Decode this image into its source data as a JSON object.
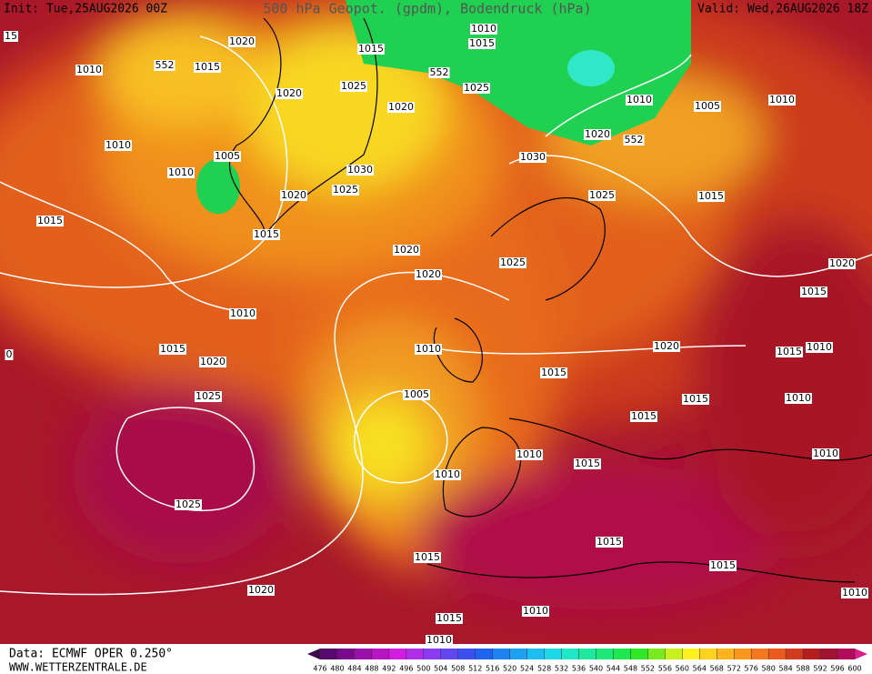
{
  "header": {
    "init": "Init: Tue,25AUG2026 00Z",
    "title": "500 hPa Geopot. (gpdm), Bodendruck (hPa)",
    "valid": "Valid: Wed,26AUG2026 18Z"
  },
  "isobar_labels": [
    "1020",
    "552",
    "1015",
    "1010",
    "1015",
    "1010",
    "1015",
    "552",
    "1025",
    "1025",
    "1020",
    "1020",
    "1010",
    "1005",
    "1010",
    "1010",
    "1005",
    "1010",
    "1030",
    "1020",
    "552",
    "1030",
    "1025",
    "1020",
    "1025",
    "1015",
    "1015",
    "1015",
    "1020",
    "1025",
    "1020",
    "1020",
    "1015",
    "1010",
    "1015",
    "1020",
    "1010",
    "1020",
    "1015",
    "1010",
    "1015",
    "1025",
    "1005",
    "1015",
    "1010",
    "1015",
    "1010",
    "1010",
    "1015",
    "1010",
    "1025",
    "1015",
    "1015",
    "1015",
    "1020",
    "1010",
    "1015",
    "1010",
    "1010",
    "15",
    "0"
  ],
  "colorbar": {
    "ticks": [
      476,
      480,
      484,
      488,
      492,
      496,
      500,
      504,
      508,
      512,
      516,
      520,
      524,
      528,
      532,
      536,
      540,
      544,
      548,
      552,
      556,
      560,
      564,
      568,
      572,
      576,
      580,
      584,
      588,
      592,
      596,
      600
    ],
    "colors": [
      "#3c0a4a",
      "#5a0a6e",
      "#7a0a8c",
      "#9a10a8",
      "#b814c4",
      "#d21ee0",
      "#b02ee8",
      "#8c3cf0",
      "#6446f0",
      "#3c50f0",
      "#1e64f0",
      "#1e82f0",
      "#1ea0f0",
      "#1ebef0",
      "#1ed8e8",
      "#1ee8c8",
      "#1ee8a0",
      "#1ee878",
      "#1ee850",
      "#32e628",
      "#78ea1e",
      "#c8f01e",
      "#fff01e",
      "#ffd21e",
      "#ffb41e",
      "#ff961e",
      "#f5781e",
      "#eb5a1e",
      "#d23c1e",
      "#b41e1e",
      "#a01432",
      "#b40a5a",
      "#dc1e8c"
    ]
  },
  "footer": {
    "source": "Data: ECMWF OPER 0.250°",
    "site": "WWW.WETTERZENTRALE.DE"
  }
}
